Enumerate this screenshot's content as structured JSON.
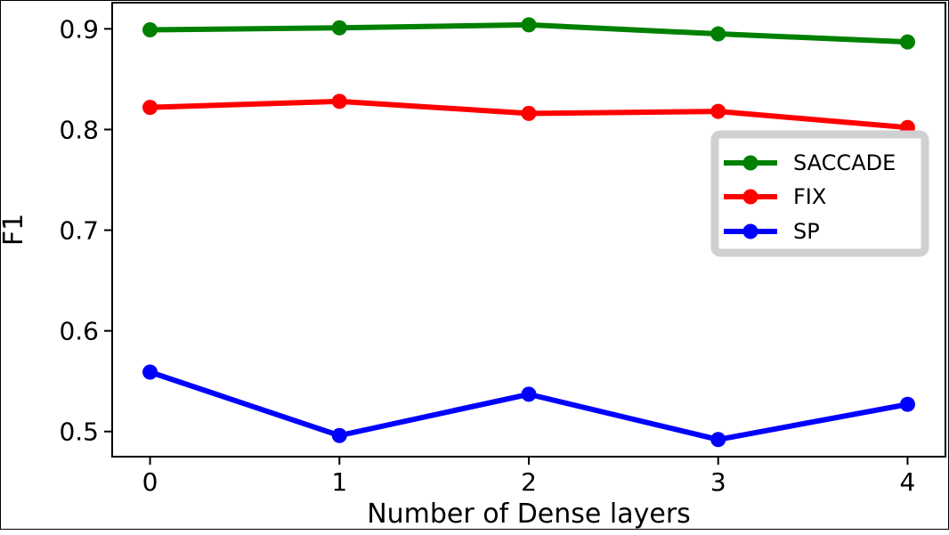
{
  "chart_data": {
    "type": "line",
    "title": "",
    "xlabel": "Number of Dense layers",
    "ylabel": "F1",
    "x": [
      0,
      1,
      2,
      3,
      4
    ],
    "x_tick_labels": [
      "0",
      "1",
      "2",
      "3",
      "4"
    ],
    "y_ticks": [
      0.5,
      0.6,
      0.7,
      0.8,
      0.9
    ],
    "y_tick_labels": [
      "0.5",
      "0.6",
      "0.7",
      "0.8",
      "0.9"
    ],
    "xlim": [
      -0.2,
      4.2
    ],
    "ylim": [
      0.475,
      0.926
    ],
    "grid": false,
    "legend_position": "center-right",
    "series": [
      {
        "name": "SACCADE",
        "color": "#008000",
        "values": [
          0.899,
          0.901,
          0.904,
          0.895,
          0.887
        ]
      },
      {
        "name": "FIX",
        "color": "#ff0000",
        "values": [
          0.822,
          0.828,
          0.816,
          0.818,
          0.802
        ]
      },
      {
        "name": "SP",
        "color": "#0000ff",
        "values": [
          0.559,
          0.496,
          0.537,
          0.492,
          0.527
        ]
      }
    ]
  }
}
